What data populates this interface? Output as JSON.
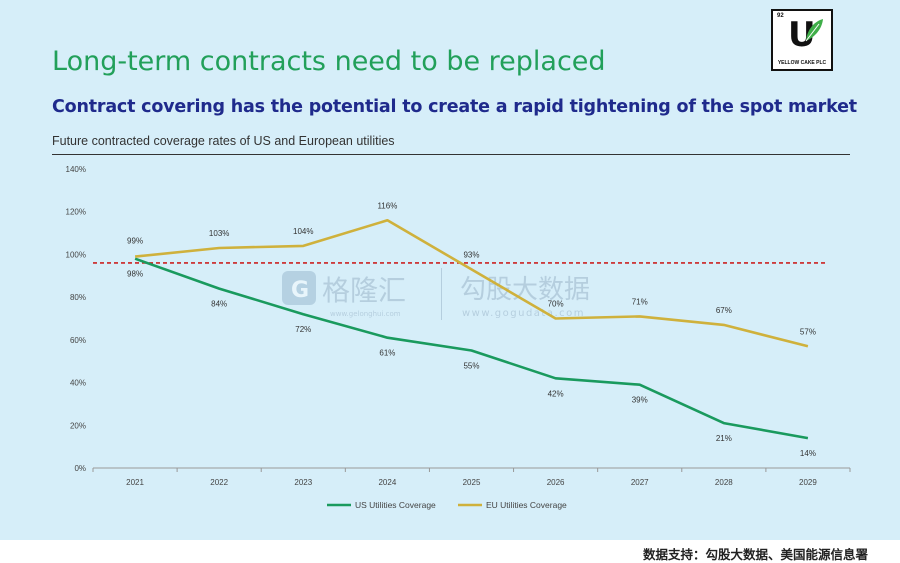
{
  "header": {
    "title": "Long-term contracts need to be replaced",
    "subtitle": "Contract covering has the potential to create a rapid tightening of the spot market",
    "caption": "Future contracted coverage rates of US and European utilities"
  },
  "logo": {
    "number": "92",
    "letter": "U",
    "name": "YELLOW CAKE PLC"
  },
  "watermark": {
    "left_name": "格隆汇",
    "left_url": "www.gelonghui.com",
    "right_name": "勾股大数据",
    "right_url": "www.gogudata.com"
  },
  "footer": {
    "source": "数据支持：勾股大数据、美国能源信息署"
  },
  "colors": {
    "background": "#d6eef9",
    "us": "#1a9a5e",
    "eu": "#cfb13c",
    "reference": "#cc2222",
    "title": "#22a05a",
    "subtitle": "#1f2a8c"
  },
  "chart_data": {
    "type": "line",
    "x": [
      "2021",
      "2022",
      "2023",
      "2024",
      "2025",
      "2026",
      "2027",
      "2028",
      "2029"
    ],
    "ylim": [
      0,
      140
    ],
    "yticks": [
      "0%",
      "20%",
      "40%",
      "60%",
      "80%",
      "100%",
      "120%",
      "140%"
    ],
    "grid": false,
    "legend_position": "bottom",
    "reference_line": 96,
    "series": [
      {
        "name": "US Utilities Coverage",
        "color": "#1a9a5e",
        "values": [
          98,
          84,
          72,
          61,
          55,
          42,
          39,
          21,
          14
        ],
        "labels": [
          "98%",
          "84%",
          "72%",
          "61%",
          "55%",
          "42%",
          "39%",
          "21%",
          "14%"
        ]
      },
      {
        "name": "EU Utilities Coverage",
        "color": "#cfb13c",
        "values": [
          99,
          103,
          104,
          116,
          93,
          70,
          71,
          67,
          57
        ],
        "labels": [
          "99%",
          "103%",
          "104%",
          "116%",
          "93%",
          "70%",
          "71%",
          "67%",
          "57%"
        ]
      }
    ]
  }
}
